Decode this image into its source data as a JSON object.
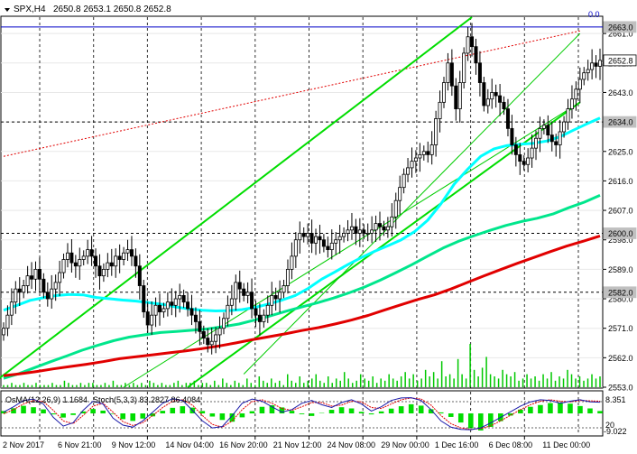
{
  "chart_data": {
    "type": "candlestick",
    "header": {
      "symbol": "SPX,H4",
      "ohlc_text": "2650.8 2653.1 2650.8 2652.8"
    },
    "price_axis": {
      "range": [
        2553.0,
        2666.0
      ],
      "ticks": [
        2661.0,
        2652.0,
        2643.0,
        2634.0,
        2625.0,
        2616.0,
        2607.0,
        2598.0,
        2589.0,
        2580.0,
        2571.0,
        2562.0,
        2553.0
      ],
      "tick_labels": [
        "2661.0",
        "2652.0",
        "2643.0",
        "2634.0",
        "2625.0",
        "2616.0",
        "2607.0",
        "2598.0",
        "2589.0",
        "2580.0",
        "2571.0",
        "2562.0",
        "2553.0"
      ]
    },
    "price_tags": [
      {
        "label": "2663.0",
        "value": 2663.0,
        "kind": "level"
      },
      {
        "label": "2652.8",
        "value": 2652.8,
        "kind": "current"
      },
      {
        "label": "2634.0",
        "value": 2634.0,
        "kind": "level"
      },
      {
        "label": "2600.0",
        "value": 2600.0,
        "kind": "level"
      },
      {
        "label": "2582.0",
        "value": 2582.0,
        "kind": "level"
      }
    ],
    "horizontal_levels": [
      2663.0,
      2634.0,
      2600.0,
      2582.0
    ],
    "fib_label": "0.0",
    "time_labels": [
      "2 Nov 2017",
      "6 Nov 21:00",
      "9 Nov 12:00",
      "14 Nov 04:00",
      "16 Nov 20:00",
      "21 Nov 12:00",
      "24 Nov 08:00",
      "29 Nov 00:00",
      "1 Dec 16:00",
      "6 Dec 08:00",
      "11 Dec 00:00"
    ],
    "candles_close": [
      2571,
      2575,
      2579,
      2583,
      2582,
      2584,
      2587,
      2586,
      2589,
      2586,
      2582,
      2580,
      2583,
      2585,
      2588,
      2592,
      2594,
      2591,
      2590,
      2592,
      2593,
      2595,
      2593,
      2590,
      2587,
      2589,
      2591,
      2590,
      2593,
      2592,
      2594,
      2595,
      2593,
      2590,
      2584,
      2576,
      2572,
      2575,
      2578,
      2576,
      2577,
      2579,
      2578,
      2580,
      2581,
      2579,
      2577,
      2575,
      2573,
      2570,
      2568,
      2566,
      2567,
      2569,
      2571,
      2574,
      2578,
      2580,
      2585,
      2583,
      2581,
      2582,
      2577,
      2575,
      2573,
      2575,
      2578,
      2581,
      2580,
      2582,
      2584,
      2589,
      2593,
      2598,
      2600,
      2599,
      2600,
      2597,
      2599,
      2598,
      2596,
      2595,
      2597,
      2598,
      2599,
      2600,
      2601,
      2602,
      2600,
      2601,
      2600,
      2600,
      2601,
      2603,
      2602,
      2601,
      2602,
      2605,
      2610,
      2614,
      2618,
      2620,
      2622,
      2623,
      2624,
      2625,
      2624,
      2627,
      2635,
      2640,
      2646,
      2652,
      2645,
      2638,
      2646,
      2655,
      2660,
      2657,
      2652,
      2646,
      2639,
      2641,
      2643,
      2642,
      2640,
      2638,
      2632,
      2627,
      2624,
      2622,
      2621,
      2623,
      2626,
      2629,
      2632,
      2633,
      2630,
      2628,
      2627,
      2631,
      2634,
      2638,
      2641,
      2644,
      2647,
      2649,
      2650,
      2652,
      2651,
      2652.8
    ],
    "series": [
      {
        "kind": "ma",
        "color": "#00ffff",
        "width": 3,
        "values": [
          2576.5,
          2578,
          2579.5,
          2580.3,
          2581,
          2581.3,
          2581.2,
          2580.4,
          2580,
          2579.6,
          2579.3,
          2578.8,
          2578.3,
          2577.5,
          2576.9,
          2576.5,
          2576.3,
          2576.4,
          2576.7,
          2577.4,
          2578.4,
          2579.6,
          2581,
          2583.2,
          2586,
          2588.2,
          2590.5,
          2592.6,
          2594.5,
          2596.2,
          2598,
          2600.5,
          2604,
          2609,
          2615,
          2619.5,
          2623.5,
          2625.8,
          2626.8,
          2627.2,
          2627.5,
          2628.2,
          2629.5,
          2631.5,
          2633.4,
          2635.2
        ]
      },
      {
        "kind": "ma",
        "color": "#00e68c",
        "width": 3,
        "values": [
          2555.7,
          2557.2,
          2559,
          2560.8,
          2562.5,
          2564.3,
          2565.8,
          2567.2,
          2568.3,
          2569,
          2569.7,
          2570,
          2570.4,
          2570.8,
          2571.5,
          2572.3,
          2573.5,
          2574.8,
          2576.2,
          2577.5,
          2578.8,
          2580.2,
          2581.8,
          2583.6,
          2585.7,
          2588,
          2590.4,
          2593,
          2595.5,
          2597.6,
          2599.3,
          2600.9,
          2602.4,
          2603.6,
          2604.6,
          2605.9,
          2607.8,
          2609.5,
          2611.6
        ]
      },
      {
        "kind": "ma",
        "color": "#e10000",
        "width": 3,
        "values": [
          2556.5,
          2557.1,
          2557.8,
          2558.6,
          2559.3,
          2560,
          2560.8,
          2561.7,
          2562.3,
          2562.9,
          2563.5,
          2564.1,
          2564.8,
          2565.6,
          2566.5,
          2567.5,
          2568.4,
          2569.3,
          2570.3,
          2571.2,
          2572.3,
          2573.5,
          2574.9,
          2576.6,
          2578.2,
          2579.8,
          2581.2,
          2583,
          2585,
          2587,
          2588.9,
          2590.8,
          2592.6,
          2594.4,
          2596.1,
          2597.6,
          2599.2
        ]
      }
    ],
    "volume": {
      "values": [
        1,
        1,
        2,
        1,
        1,
        2,
        1,
        1,
        2,
        1,
        1,
        1,
        2,
        1,
        1,
        3,
        2,
        1,
        1,
        2,
        1,
        2,
        2,
        1,
        1,
        2,
        1,
        3,
        1,
        1,
        2,
        1,
        2,
        1,
        2,
        1,
        3,
        2,
        1,
        2,
        1,
        1,
        2,
        3,
        1,
        2,
        2,
        3,
        1,
        2,
        2,
        1,
        3,
        1,
        4,
        2,
        1,
        3,
        2,
        1,
        4,
        2,
        1,
        5,
        3,
        2,
        4,
        2,
        3,
        1,
        6,
        3,
        2,
        5,
        2,
        3,
        4,
        6,
        3,
        2,
        5,
        2,
        4,
        3,
        7,
        4,
        2,
        3,
        6,
        4,
        3,
        5,
        2,
        4,
        3,
        6,
        4,
        3,
        5,
        7,
        4,
        6,
        3,
        4,
        8,
        5,
        7,
        4,
        12,
        5,
        6,
        4,
        13,
        6,
        4,
        20,
        8,
        5,
        9,
        14,
        6,
        5,
        4,
        8,
        6,
        5,
        7,
        3,
        4,
        6,
        4,
        5,
        3,
        6,
        4,
        7,
        3,
        5,
        4,
        8,
        6,
        4,
        5,
        3,
        4,
        6,
        4,
        5
      ]
    },
    "indicators": {
      "osma_label": "OsMA(12,26,9) 1.1684",
      "stoch_label": "Stoch(5,3,3) 83.2827 86.4084",
      "right_top": "8.351",
      "right_mid": "20",
      "right_bottom": "-9.022",
      "osma": [
        1.2,
        2.6,
        3.8,
        3.1,
        2.0,
        -0.5,
        -2.1,
        -0.8,
        1.0,
        2.2,
        1.4,
        -0.3,
        -2.9,
        -3.8,
        -2.6,
        -1.5,
        1.3,
        2.8,
        3.6,
        2.9,
        1.2,
        -1.6,
        -3.3,
        -4.2,
        -2.0,
        1.1,
        3.3,
        4.1,
        3.0,
        1.3,
        -0.4,
        -1.3,
        0.2,
        1.8,
        3.1,
        2.5,
        0.8,
        -0.5,
        1.0,
        2.4,
        3.6,
        4.6,
        3.9,
        2.1,
        0.5,
        -1.8,
        -4.6,
        -7.5,
        -8.6,
        -6.8,
        -3.9,
        -1.1,
        1.9,
        3.3,
        4.2,
        5.2,
        5.5,
        4.9,
        3.7,
        2.5,
        1.2
      ],
      "stoch_main": [
        55,
        70,
        88,
        92,
        78,
        40,
        15,
        25,
        60,
        86,
        78,
        38,
        18,
        12,
        30,
        55,
        80,
        93,
        88,
        60,
        30,
        10,
        14,
        45,
        80,
        92,
        86,
        70,
        55,
        62,
        80,
        88,
        76,
        68,
        82,
        90,
        78,
        58,
        70,
        88,
        95,
        96,
        88,
        62,
        30,
        12,
        6,
        5,
        10,
        24,
        40,
        56,
        72,
        84,
        90,
        88,
        80,
        86,
        90,
        84,
        83
      ],
      "stoch_signal": [
        50,
        62,
        78,
        88,
        85,
        60,
        30,
        22,
        45,
        72,
        80,
        55,
        28,
        17,
        25,
        45,
        68,
        86,
        90,
        75,
        45,
        20,
        12,
        30,
        62,
        85,
        90,
        80,
        65,
        60,
        70,
        82,
        82,
        72,
        75,
        86,
        84,
        68,
        65,
        78,
        90,
        95,
        92,
        75,
        45,
        22,
        10,
        6,
        8,
        16,
        30,
        46,
        62,
        76,
        86,
        90,
        86,
        84,
        88,
        87,
        86
      ]
    },
    "grid": true
  }
}
